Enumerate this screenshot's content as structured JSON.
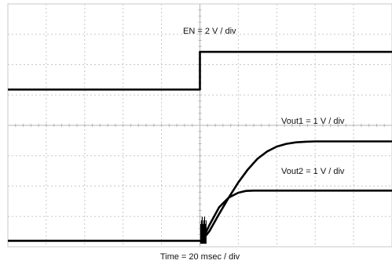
{
  "chart_data": {
    "type": "line",
    "title": "",
    "xlabel": "Time = 20 msec / div",
    "ylabel": "",
    "grid": true,
    "grid_divisions": {
      "x": 10,
      "y": 8
    },
    "x_units": "div",
    "y_units": "div",
    "x_range_div": [
      0,
      10
    ],
    "y_range_div": [
      0,
      8
    ],
    "series": [
      {
        "name": "EN = 2 V / div",
        "x_div": [
          0,
          5.0,
          5.0,
          10
        ],
        "y_div": [
          5.18,
          5.18,
          6.42,
          6.42
        ]
      },
      {
        "name": "Vout1 = 1 V / div",
        "x_div": [
          0,
          5.05,
          5.25,
          5.5,
          5.75,
          6.0,
          6.25,
          6.5,
          6.75,
          7.0,
          7.25,
          7.5,
          7.75,
          8.0,
          10
        ],
        "y_div": [
          0.2,
          0.2,
          0.52,
          1.08,
          1.62,
          2.12,
          2.55,
          2.9,
          3.14,
          3.3,
          3.39,
          3.44,
          3.46,
          3.47,
          3.47
        ]
      },
      {
        "name": "Vout2 = 1 V / div",
        "x_div": [
          0,
          5.05,
          5.25,
          5.5,
          5.75,
          6.0,
          6.2,
          6.4,
          10
        ],
        "y_div": [
          0.2,
          0.2,
          0.72,
          1.3,
          1.62,
          1.78,
          1.84,
          1.85,
          1.85
        ]
      }
    ]
  }
}
